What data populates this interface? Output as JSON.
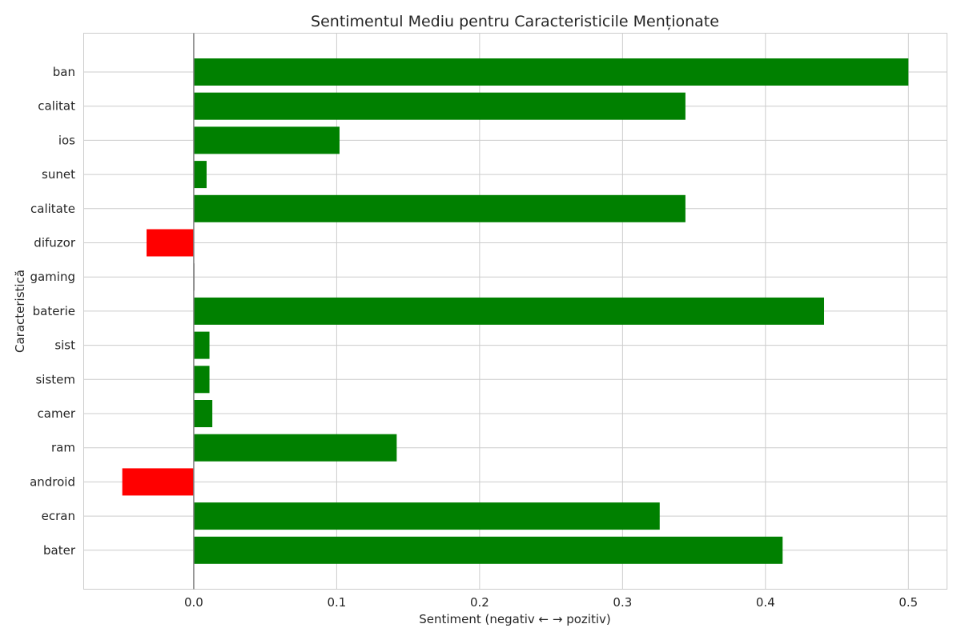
{
  "chart_data": {
    "type": "bar",
    "orientation": "horizontal",
    "title": "Sentimentul Mediu pentru Caracteristicile Menționate",
    "xlabel": "Sentiment (negativ ← → pozitiv)",
    "ylabel": "Caracteristică",
    "xlim": [
      -0.077,
      0.527
    ],
    "xticks": [
      0.0,
      0.1,
      0.2,
      0.3,
      0.4,
      0.5
    ],
    "xtick_labels": [
      "0.0",
      "0.1",
      "0.2",
      "0.3",
      "0.4",
      "0.5"
    ],
    "grid": true,
    "categories": [
      "ban",
      "calitat",
      "ios",
      "sunet",
      "calitate",
      "difuzor",
      "gaming",
      "baterie",
      "sist",
      "sistem",
      "camer",
      "ram",
      "android",
      "ecran",
      "bater"
    ],
    "values": [
      0.5,
      0.344,
      0.102,
      0.009,
      0.344,
      -0.033,
      0.0,
      0.441,
      0.011,
      0.011,
      0.013,
      0.142,
      -0.05,
      0.326,
      0.412
    ],
    "colors": {
      "positive": "#008000",
      "negative": "#ff0000",
      "neutral": "#808080"
    }
  }
}
